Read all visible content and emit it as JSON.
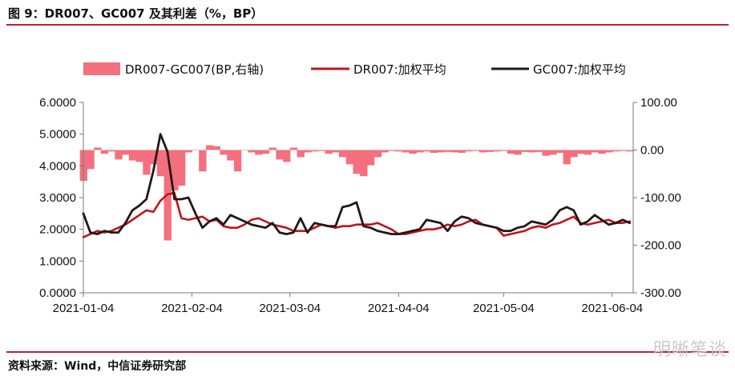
{
  "figure_title": "图 9：DR007、GC007 及其利差（%，BP）",
  "source": "资料来源：Wind，中信证券研究部",
  "watermark": "明晰笔谈",
  "colors": {
    "rule": "#b8232f",
    "spread": "#f4707f",
    "dr007": "#c0141d",
    "gc007": "#231815"
  },
  "chart_data": {
    "type": "line",
    "x_axis": {
      "type": "date",
      "range": [
        "2021-01-04",
        "2021-06-10"
      ],
      "ticks": [
        "2021-01-04",
        "2021-02-04",
        "2021-03-04",
        "2021-04-04",
        "2021-05-04",
        "2021-06-04"
      ]
    },
    "y_left": {
      "range": [
        0,
        6
      ],
      "ticks": [
        "0.0000",
        "1.0000",
        "2.0000",
        "3.0000",
        "4.0000",
        "5.0000",
        "6.0000"
      ]
    },
    "y_right": {
      "range": [
        -300,
        100
      ],
      "ticks": [
        "-300.00",
        "-200.00",
        "-100.00",
        "0.00",
        "100.00"
      ]
    },
    "grid": false,
    "legend": {
      "position": "top"
    },
    "series": [
      {
        "name": "DR007-GC007(BP,右轴)",
        "type": "area",
        "axis": "right",
        "x": [
          "2021-01-04",
          "2021-01-06",
          "2021-01-08",
          "2021-01-10",
          "2021-01-12",
          "2021-01-14",
          "2021-01-16",
          "2021-01-18",
          "2021-01-20",
          "2021-01-22",
          "2021-01-24",
          "2021-01-26",
          "2021-01-28",
          "2021-01-30",
          "2021-02-01",
          "2021-02-03",
          "2021-02-05",
          "2021-02-07",
          "2021-02-09",
          "2021-02-11",
          "2021-02-13",
          "2021-02-15",
          "2021-02-17",
          "2021-02-19",
          "2021-02-21",
          "2021-02-23",
          "2021-02-25",
          "2021-02-27",
          "2021-03-01",
          "2021-03-03",
          "2021-03-05",
          "2021-03-07",
          "2021-03-09",
          "2021-03-11",
          "2021-03-13",
          "2021-03-15",
          "2021-03-17",
          "2021-03-19",
          "2021-03-21",
          "2021-03-23",
          "2021-03-25",
          "2021-03-27",
          "2021-03-29",
          "2021-03-31",
          "2021-04-02",
          "2021-04-04",
          "2021-04-06",
          "2021-04-08",
          "2021-04-10",
          "2021-04-12",
          "2021-04-14",
          "2021-04-16",
          "2021-04-18",
          "2021-04-20",
          "2021-04-22",
          "2021-04-24",
          "2021-04-26",
          "2021-04-28",
          "2021-04-30",
          "2021-05-02",
          "2021-05-04",
          "2021-05-06",
          "2021-05-08",
          "2021-05-10",
          "2021-05-12",
          "2021-05-14",
          "2021-05-16",
          "2021-05-18",
          "2021-05-20",
          "2021-05-22",
          "2021-05-24",
          "2021-05-26",
          "2021-05-28",
          "2021-05-30",
          "2021-06-01",
          "2021-06-03",
          "2021-06-05",
          "2021-06-07",
          "2021-06-09"
        ],
        "values": [
          -65,
          -40,
          5,
          -8,
          -3,
          -20,
          -10,
          -22,
          -25,
          -52,
          -30,
          -55,
          -190,
          -85,
          -75,
          -5,
          0,
          -45,
          10,
          8,
          -10,
          -22,
          -45,
          0,
          -5,
          -10,
          -8,
          5,
          -20,
          -25,
          5,
          -15,
          -5,
          -3,
          -2,
          -8,
          -5,
          -15,
          -30,
          -50,
          -55,
          -32,
          -15,
          -5,
          -2,
          -3,
          -5,
          -8,
          -5,
          -3,
          -6,
          -5,
          -4,
          -5,
          -6,
          -3,
          -2,
          -5,
          -4,
          -3,
          -2,
          -8,
          -10,
          -4,
          -5,
          -4,
          -12,
          -10,
          -6,
          -30,
          -15,
          -8,
          -10,
          -5,
          -8,
          -5,
          -3,
          -2,
          -3
        ]
      },
      {
        "name": "DR007:加权平均",
        "type": "line",
        "axis": "left",
        "x": [
          "2021-01-04",
          "2021-01-06",
          "2021-01-08",
          "2021-01-10",
          "2021-01-12",
          "2021-01-14",
          "2021-01-16",
          "2021-01-18",
          "2021-01-20",
          "2021-01-22",
          "2021-01-24",
          "2021-01-26",
          "2021-01-28",
          "2021-01-30",
          "2021-02-01",
          "2021-02-03",
          "2021-02-05",
          "2021-02-07",
          "2021-02-09",
          "2021-02-11",
          "2021-02-13",
          "2021-02-15",
          "2021-02-17",
          "2021-02-19",
          "2021-02-21",
          "2021-02-23",
          "2021-02-25",
          "2021-02-27",
          "2021-03-01",
          "2021-03-03",
          "2021-03-05",
          "2021-03-07",
          "2021-03-09",
          "2021-03-11",
          "2021-03-13",
          "2021-03-15",
          "2021-03-17",
          "2021-03-19",
          "2021-03-21",
          "2021-03-23",
          "2021-03-25",
          "2021-03-27",
          "2021-03-29",
          "2021-03-31",
          "2021-04-02",
          "2021-04-04",
          "2021-04-06",
          "2021-04-08",
          "2021-04-10",
          "2021-04-12",
          "2021-04-14",
          "2021-04-16",
          "2021-04-18",
          "2021-04-20",
          "2021-04-22",
          "2021-04-24",
          "2021-04-26",
          "2021-04-28",
          "2021-04-30",
          "2021-05-02",
          "2021-05-04",
          "2021-05-06",
          "2021-05-08",
          "2021-05-10",
          "2021-05-12",
          "2021-05-14",
          "2021-05-16",
          "2021-05-18",
          "2021-05-20",
          "2021-05-22",
          "2021-05-24",
          "2021-05-26",
          "2021-05-28",
          "2021-05-30",
          "2021-06-01",
          "2021-06-03",
          "2021-06-05",
          "2021-06-07",
          "2021-06-09"
        ],
        "values": [
          1.75,
          1.85,
          1.95,
          1.9,
          1.95,
          2.05,
          2.15,
          2.3,
          2.45,
          2.6,
          2.55,
          2.9,
          3.1,
          3.15,
          2.35,
          2.3,
          2.35,
          2.4,
          2.25,
          2.3,
          2.1,
          2.05,
          2.05,
          2.15,
          2.3,
          2.35,
          2.25,
          2.15,
          2.1,
          2.05,
          1.95,
          1.95,
          1.95,
          2.05,
          2.15,
          2.1,
          2.05,
          2.1,
          2.1,
          2.15,
          2.15,
          2.15,
          2.2,
          2.1,
          2.0,
          1.85,
          1.85,
          1.9,
          1.95,
          2.0,
          2.0,
          2.05,
          2.15,
          2.1,
          2.15,
          2.25,
          2.3,
          2.15,
          2.1,
          2.05,
          1.8,
          1.85,
          1.9,
          1.95,
          2.05,
          2.1,
          2.05,
          2.15,
          2.2,
          2.3,
          2.4,
          2.2,
          2.15,
          2.2,
          2.25,
          2.3,
          2.2,
          2.2,
          2.25
        ]
      },
      {
        "name": "GC007:加权平均",
        "type": "line",
        "axis": "left",
        "x": [
          "2021-01-04",
          "2021-01-06",
          "2021-01-08",
          "2021-01-10",
          "2021-01-12",
          "2021-01-14",
          "2021-01-16",
          "2021-01-18",
          "2021-01-20",
          "2021-01-22",
          "2021-01-24",
          "2021-01-26",
          "2021-01-28",
          "2021-01-30",
          "2021-02-01",
          "2021-02-03",
          "2021-02-05",
          "2021-02-07",
          "2021-02-09",
          "2021-02-11",
          "2021-02-13",
          "2021-02-15",
          "2021-02-17",
          "2021-02-19",
          "2021-02-21",
          "2021-02-23",
          "2021-02-25",
          "2021-02-27",
          "2021-03-01",
          "2021-03-03",
          "2021-03-05",
          "2021-03-07",
          "2021-03-09",
          "2021-03-11",
          "2021-03-13",
          "2021-03-15",
          "2021-03-17",
          "2021-03-19",
          "2021-03-21",
          "2021-03-23",
          "2021-03-25",
          "2021-03-27",
          "2021-03-29",
          "2021-03-31",
          "2021-04-02",
          "2021-04-04",
          "2021-04-06",
          "2021-04-08",
          "2021-04-10",
          "2021-04-12",
          "2021-04-14",
          "2021-04-16",
          "2021-04-18",
          "2021-04-20",
          "2021-04-22",
          "2021-04-24",
          "2021-04-26",
          "2021-04-28",
          "2021-04-30",
          "2021-05-02",
          "2021-05-04",
          "2021-05-06",
          "2021-05-08",
          "2021-05-10",
          "2021-05-12",
          "2021-05-14",
          "2021-05-16",
          "2021-05-18",
          "2021-05-20",
          "2021-05-22",
          "2021-05-24",
          "2021-05-26",
          "2021-05-28",
          "2021-05-30",
          "2021-06-01",
          "2021-06-03",
          "2021-06-05",
          "2021-06-07",
          "2021-06-09"
        ],
        "values": [
          2.5,
          1.9,
          1.85,
          1.95,
          1.9,
          1.9,
          2.2,
          2.6,
          2.75,
          2.95,
          3.85,
          5.0,
          4.45,
          2.95,
          2.95,
          3.0,
          2.5,
          2.05,
          2.25,
          2.35,
          2.15,
          2.45,
          2.35,
          2.25,
          2.15,
          2.1,
          2.05,
          2.2,
          1.9,
          1.85,
          1.9,
          2.35,
          1.9,
          2.2,
          2.15,
          2.1,
          2.1,
          2.7,
          2.75,
          2.85,
          2.1,
          2.05,
          1.95,
          1.9,
          1.85,
          1.85,
          1.9,
          1.95,
          2.0,
          2.3,
          2.25,
          2.2,
          1.95,
          2.25,
          2.4,
          2.35,
          2.2,
          2.15,
          2.1,
          2.05,
          1.95,
          1.95,
          2.05,
          2.1,
          2.25,
          2.2,
          2.15,
          2.3,
          2.6,
          2.7,
          2.6,
          2.15,
          2.25,
          2.45,
          2.3,
          2.15,
          2.2,
          2.3,
          2.2
        ]
      }
    ],
    "gaps_note": ""
  }
}
